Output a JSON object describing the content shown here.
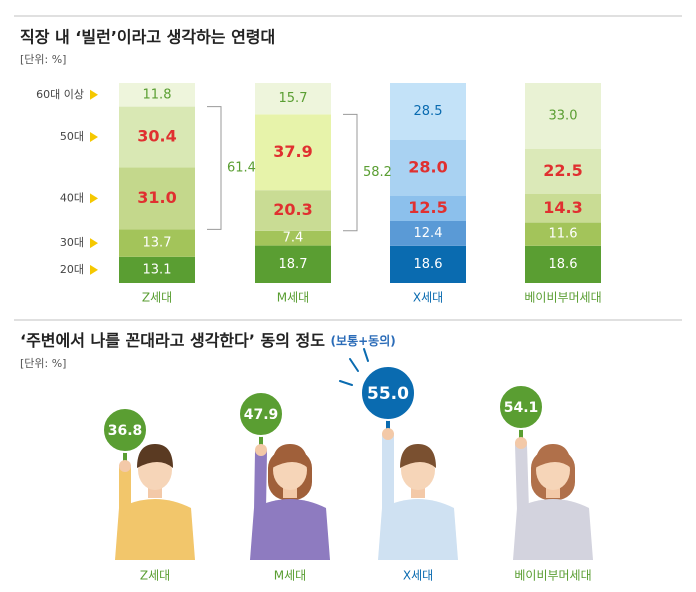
{
  "chart_data": [
    {
      "type": "stacked-bar",
      "title": "직장 내 ‘빌런’이라고 생각하는 연령대",
      "subtitle": "[단위: %]",
      "categories": [
        "Z세대",
        "M세대",
        "X세대",
        "베이비부머세대"
      ],
      "category_colors": [
        "#5a9e32",
        "#5a9e32",
        "#0a6bb0",
        "#5a9e32"
      ],
      "series": [
        {
          "name": "20대",
          "values": [
            13.1,
            18.7,
            18.6,
            18.6
          ],
          "value_labels": [
            "13.1",
            "18.7",
            "18.6",
            "18.6"
          ],
          "colors": [
            "#5a9e32",
            "#5a9e32",
            "#0a6bb0",
            "#5a9e32"
          ],
          "label_color": "#ffffff"
        },
        {
          "name": "30대",
          "values": [
            13.7,
            7.4,
            12.4,
            11.6
          ],
          "value_labels": [
            "13.7",
            "7.4",
            "12.4",
            "11.6"
          ],
          "colors": [
            "#a3c45a",
            "#a3c45a",
            "#5a9ad6",
            "#a3c45a"
          ],
          "label_color": "#ffffff"
        },
        {
          "name": "40대",
          "values": [
            31.0,
            20.3,
            12.5,
            14.3
          ],
          "value_labels": [
            "31.0",
            "20.3",
            "12.5",
            "14.3"
          ],
          "colors": [
            "#c4d88c",
            "#c9dc94",
            "#8cc0ec",
            "#c9dc94"
          ],
          "label_color": "#e03030"
        },
        {
          "name": "50대",
          "values": [
            30.4,
            37.9,
            28.0,
            22.5
          ],
          "value_labels": [
            "30.4",
            "37.9",
            "28.0",
            "22.5"
          ],
          "colors": [
            "#d9e8b4",
            "#e7f3aa",
            "#a9d2f2",
            "#dbe9b8"
          ],
          "label_color": "#e03030"
        },
        {
          "name": "60대 이상",
          "values": [
            11.8,
            15.7,
            28.5,
            33.0
          ],
          "value_labels": [
            "11.8",
            "15.7",
            "28.5",
            "33.0"
          ],
          "colors": [
            "#eef5dc",
            "#eef5dc",
            "#c3e2f8",
            "#e9f2d4"
          ],
          "label_color": [
            "#5a9e32",
            "#5a9e32",
            "#0a6bb0",
            "#5a9e32"
          ]
        }
      ],
      "brackets": [
        {
          "category": "Z세대",
          "series": [
            "40대",
            "50대"
          ],
          "value": 61.4
        },
        {
          "category": "M세대",
          "series": [
            "40대",
            "50대"
          ],
          "value": 58.2
        }
      ],
      "legend_marker_color": "#f5c800"
    },
    {
      "type": "pictogram",
      "title": "‘주변에서 나를 꼰대라고 생각한다’ 동의 정도",
      "title_note": "(보통+동의)",
      "subtitle": "[단위: %]",
      "categories": [
        "Z세대",
        "M세대",
        "X세대",
        "베이비부머세대"
      ],
      "values": [
        36.8,
        47.9,
        55.0,
        54.1
      ],
      "value_labels": [
        "36.8",
        "47.9",
        "55.0",
        "54.1"
      ],
      "colors": [
        "#5a9e32",
        "#5a9e32",
        "#0a6bb0",
        "#5a9e32"
      ]
    }
  ]
}
